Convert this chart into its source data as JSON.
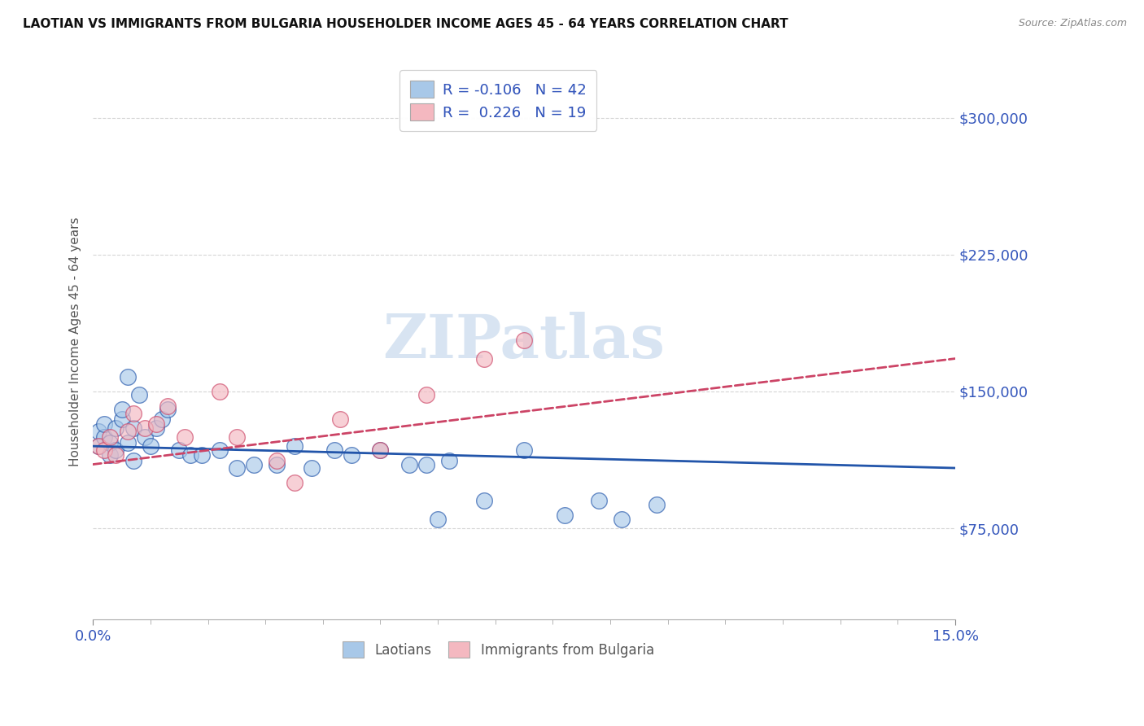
{
  "title": "LAOTIAN VS IMMIGRANTS FROM BULGARIA HOUSEHOLDER INCOME AGES 45 - 64 YEARS CORRELATION CHART",
  "source": "Source: ZipAtlas.com",
  "ylabel": "Householder Income Ages 45 - 64 years",
  "xlim": [
    0.0,
    0.15
  ],
  "ylim": [
    25000,
    330000
  ],
  "yticks": [
    75000,
    150000,
    225000,
    300000
  ],
  "ytick_labels": [
    "$75,000",
    "$150,000",
    "$225,000",
    "$300,000"
  ],
  "xtick_labels": [
    "0.0%",
    "15.0%"
  ],
  "color_laotian": "#a8c8e8",
  "color_bulgaria": "#f4b8c0",
  "trendline_color_laotian": "#2255aa",
  "trendline_color_bulgaria": "#cc4466",
  "watermark": "ZIPatlas",
  "laotian_x": [
    0.001,
    0.001,
    0.002,
    0.002,
    0.003,
    0.003,
    0.004,
    0.004,
    0.005,
    0.005,
    0.006,
    0.006,
    0.007,
    0.007,
    0.008,
    0.009,
    0.01,
    0.011,
    0.012,
    0.013,
    0.015,
    0.017,
    0.019,
    0.022,
    0.025,
    0.028,
    0.032,
    0.035,
    0.038,
    0.042,
    0.045,
    0.05,
    0.055,
    0.058,
    0.06,
    0.062,
    0.068,
    0.075,
    0.082,
    0.088,
    0.092,
    0.098
  ],
  "laotian_y": [
    120000,
    128000,
    125000,
    132000,
    115000,
    122000,
    130000,
    118000,
    135000,
    140000,
    158000,
    122000,
    130000,
    112000,
    148000,
    125000,
    120000,
    130000,
    135000,
    140000,
    118000,
    115000,
    115000,
    118000,
    108000,
    110000,
    110000,
    120000,
    108000,
    118000,
    115000,
    118000,
    110000,
    110000,
    80000,
    112000,
    90000,
    118000,
    82000,
    90000,
    80000,
    88000
  ],
  "bulgaria_x": [
    0.001,
    0.002,
    0.003,
    0.004,
    0.006,
    0.007,
    0.009,
    0.011,
    0.013,
    0.016,
    0.022,
    0.025,
    0.032,
    0.035,
    0.043,
    0.05,
    0.058,
    0.068,
    0.075
  ],
  "bulgaria_y": [
    120000,
    118000,
    125000,
    115000,
    128000,
    138000,
    130000,
    132000,
    142000,
    125000,
    150000,
    125000,
    112000,
    100000,
    135000,
    118000,
    148000,
    168000,
    178000
  ]
}
